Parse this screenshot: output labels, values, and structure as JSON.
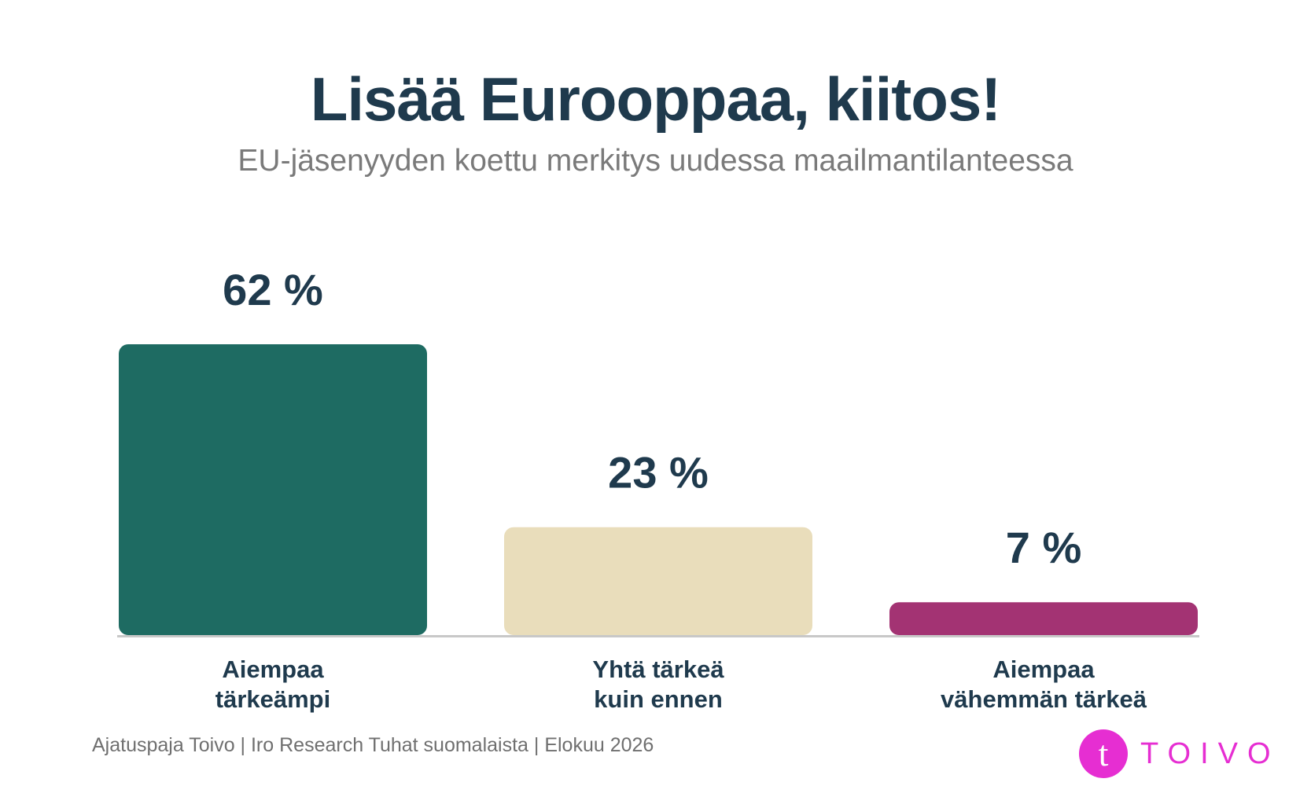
{
  "colors": {
    "title": "#1f3a4d",
    "subtitle": "#7a7a7a",
    "baseline": "#c8c8c8",
    "brand": "#e62ed2"
  },
  "chart_data": {
    "type": "bar",
    "title": "Lisää Eurooppaa, kiitos!",
    "subtitle": "EU-jäsenyyden koettu merkitys uudessa maailmantilanteessa",
    "categories": [
      [
        "Aiempaa",
        "tärkeämpi"
      ],
      [
        "Yhtä tärkeä",
        "kuin ennen"
      ],
      [
        "Aiempaa",
        "vähemmän tärkeä"
      ]
    ],
    "values": [
      62,
      23,
      7
    ],
    "value_labels": [
      "62 %",
      "23 %",
      "7 %"
    ],
    "colors": [
      "#1e6b62",
      "#e9ddbb",
      "#a33373"
    ],
    "unit": "%",
    "ylim": [
      0,
      62
    ],
    "grid": false,
    "legend": "none"
  },
  "footer": {
    "source": "Ajatuspaja Toivo | Iro Research Tuhat suomalaista | Elokuu 2026"
  },
  "logo": {
    "mark": "t",
    "text": "TOIVO",
    "icon": "toivo-logo-icon"
  }
}
